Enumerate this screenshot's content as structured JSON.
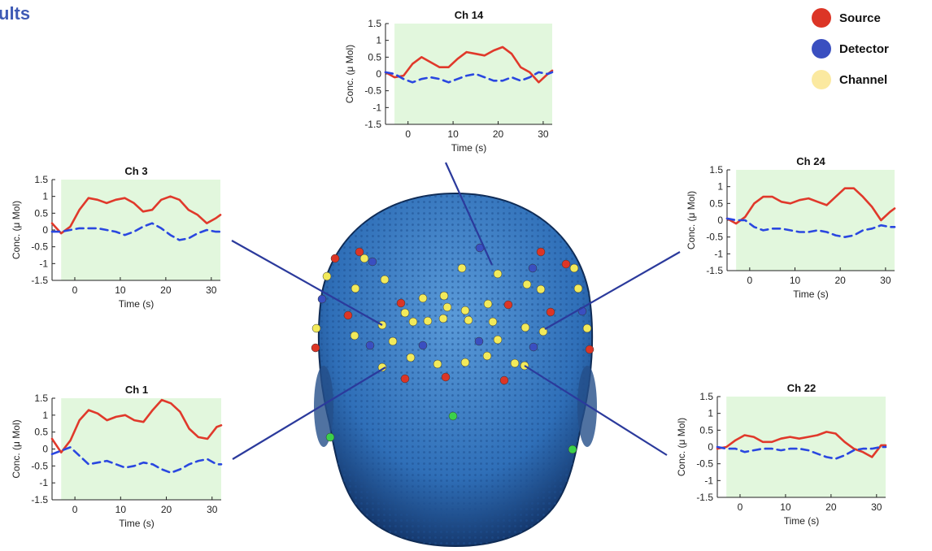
{
  "page_title_fragment": "ults",
  "colors": {
    "title": "#3f5bb5",
    "plot_bg": "#e2f7dd",
    "source_line": "#e0392b",
    "detector_line": "#2a47e0",
    "connector": "#2b3a9c",
    "head": "#3f7fc4",
    "head_dark": "#1b3f7a"
  },
  "legend": {
    "items": [
      {
        "label": "Source",
        "color": "#dc3526"
      },
      {
        "label": "Detector",
        "color": "#3a4fc0"
      },
      {
        "label": "Channel",
        "color": "#fbe9a0"
      }
    ]
  },
  "chart_data": [
    {
      "type": "line",
      "title": "Ch 14",
      "xlabel": "Time (s)",
      "ylabel": "Conc. (μ Mol)",
      "xlim": [
        -5,
        32
      ],
      "ylim": [
        -1.5,
        1.5
      ],
      "xticks": [
        "0",
        "10",
        "20",
        "30"
      ],
      "yticks": [
        "1.5",
        "1",
        "0.5",
        "0",
        "-0.5",
        "-1",
        "-1.5"
      ],
      "shaded_region": [
        -3,
        32
      ],
      "series": [
        {
          "style": "solid-red",
          "x": [
            -5,
            -3,
            -1,
            1,
            3,
            5,
            7,
            9,
            11,
            13,
            15,
            17,
            19,
            21,
            23,
            25,
            27,
            29,
            31,
            32
          ],
          "y": [
            0.05,
            -0.1,
            -0.05,
            0.3,
            0.5,
            0.35,
            0.2,
            0.2,
            0.45,
            0.65,
            0.6,
            0.55,
            0.7,
            0.8,
            0.6,
            0.2,
            0.05,
            -0.25,
            0.0,
            0.1
          ]
        },
        {
          "style": "dashed-blue",
          "x": [
            -5,
            -3,
            -1,
            1,
            3,
            5,
            7,
            9,
            11,
            13,
            15,
            17,
            19,
            21,
            23,
            25,
            27,
            29,
            31,
            32
          ],
          "y": [
            0.05,
            0.0,
            -0.15,
            -0.25,
            -0.15,
            -0.1,
            -0.15,
            -0.25,
            -0.15,
            -0.05,
            0.0,
            -0.1,
            -0.2,
            -0.2,
            -0.1,
            -0.2,
            -0.1,
            0.05,
            0.0,
            0.05
          ]
        }
      ]
    },
    {
      "type": "line",
      "title": "Ch 3",
      "xlabel": "Time (s)",
      "ylabel": "Conc. (μ Mol)",
      "xlim": [
        -5,
        32
      ],
      "ylim": [
        -1.5,
        1.5
      ],
      "xticks": [
        "0",
        "10",
        "20",
        "30"
      ],
      "yticks": [
        "1.5",
        "1",
        "0.5",
        "0",
        "-0.5",
        "-1",
        "-1.5"
      ],
      "shaded_region": [
        -3,
        32
      ],
      "series": [
        {
          "style": "solid-red",
          "x": [
            -5,
            -3,
            -1,
            1,
            3,
            5,
            7,
            9,
            11,
            13,
            15,
            17,
            19,
            21,
            23,
            25,
            27,
            29,
            31,
            32
          ],
          "y": [
            0.2,
            -0.1,
            0.1,
            0.6,
            0.95,
            0.9,
            0.8,
            0.9,
            0.95,
            0.8,
            0.55,
            0.6,
            0.9,
            1.0,
            0.9,
            0.6,
            0.45,
            0.2,
            0.35,
            0.45
          ]
        },
        {
          "style": "dashed-blue",
          "x": [
            -5,
            -3,
            -1,
            1,
            3,
            5,
            7,
            9,
            11,
            13,
            15,
            17,
            19,
            21,
            23,
            25,
            27,
            29,
            31,
            32
          ],
          "y": [
            -0.05,
            -0.05,
            0.0,
            0.05,
            0.05,
            0.05,
            0.0,
            -0.05,
            -0.15,
            -0.05,
            0.1,
            0.2,
            0.05,
            -0.15,
            -0.3,
            -0.25,
            -0.1,
            0.0,
            -0.05,
            -0.05
          ]
        }
      ]
    },
    {
      "type": "line",
      "title": "Ch 24",
      "xlabel": "Time (s)",
      "ylabel": "Conc. (μ Mol)",
      "xlim": [
        -5,
        32
      ],
      "ylim": [
        -1.5,
        1.5
      ],
      "xticks": [
        "0",
        "10",
        "20",
        "30"
      ],
      "yticks": [
        "1.5",
        "1",
        "0.5",
        "0",
        "-0.5",
        "-1",
        "-1.5"
      ],
      "shaded_region": [
        -3,
        32
      ],
      "series": [
        {
          "style": "solid-red",
          "x": [
            -5,
            -3,
            -1,
            1,
            3,
            5,
            7,
            9,
            11,
            13,
            15,
            17,
            19,
            21,
            23,
            25,
            27,
            29,
            31,
            32
          ],
          "y": [
            0.05,
            -0.1,
            0.1,
            0.5,
            0.7,
            0.7,
            0.55,
            0.5,
            0.6,
            0.65,
            0.55,
            0.45,
            0.7,
            0.95,
            0.95,
            0.7,
            0.4,
            0.0,
            0.25,
            0.35
          ]
        },
        {
          "style": "dashed-blue",
          "x": [
            -5,
            -3,
            -1,
            1,
            3,
            5,
            7,
            9,
            11,
            13,
            15,
            17,
            19,
            21,
            23,
            25,
            27,
            29,
            31,
            32
          ],
          "y": [
            0.05,
            0.0,
            0.0,
            -0.2,
            -0.3,
            -0.25,
            -0.25,
            -0.3,
            -0.35,
            -0.35,
            -0.3,
            -0.35,
            -0.45,
            -0.5,
            -0.45,
            -0.3,
            -0.25,
            -0.15,
            -0.2,
            -0.2
          ]
        }
      ]
    },
    {
      "type": "line",
      "title": "Ch 1",
      "xlabel": "Time (s)",
      "ylabel": "Conc. (μ Mol)",
      "xlim": [
        -5,
        32
      ],
      "ylim": [
        -1.5,
        1.5
      ],
      "xticks": [
        "0",
        "10",
        "20",
        "30"
      ],
      "yticks": [
        "1.5",
        "1",
        "0.5",
        "0",
        "-0.5",
        "-1",
        "-1.5"
      ],
      "shaded_region": [
        -3,
        32
      ],
      "series": [
        {
          "style": "solid-red",
          "x": [
            -5,
            -3,
            -1,
            1,
            3,
            5,
            7,
            9,
            11,
            13,
            15,
            17,
            19,
            21,
            23,
            25,
            27,
            29,
            31,
            32
          ],
          "y": [
            0.3,
            -0.1,
            0.25,
            0.85,
            1.15,
            1.05,
            0.85,
            0.95,
            1.0,
            0.85,
            0.8,
            1.15,
            1.45,
            1.35,
            1.1,
            0.6,
            0.35,
            0.3,
            0.65,
            0.7
          ]
        },
        {
          "style": "dashed-blue",
          "x": [
            -5,
            -3,
            -1,
            1,
            3,
            5,
            7,
            9,
            11,
            13,
            15,
            17,
            19,
            21,
            23,
            25,
            27,
            29,
            31,
            32
          ],
          "y": [
            -0.15,
            -0.05,
            0.05,
            -0.2,
            -0.45,
            -0.4,
            -0.35,
            -0.45,
            -0.55,
            -0.5,
            -0.4,
            -0.45,
            -0.6,
            -0.7,
            -0.6,
            -0.45,
            -0.35,
            -0.3,
            -0.45,
            -0.45
          ]
        }
      ]
    },
    {
      "type": "line",
      "title": "Ch 22",
      "xlabel": "Time (s)",
      "ylabel": "Conc. (μ Mol)",
      "xlim": [
        -5,
        32
      ],
      "ylim": [
        -1.5,
        1.5
      ],
      "xticks": [
        "0",
        "10",
        "20",
        "30"
      ],
      "yticks": [
        "1.5",
        "1",
        "0.5",
        "0",
        "-0.5",
        "-1",
        "-1.5"
      ],
      "shaded_region": [
        -3,
        32
      ],
      "series": [
        {
          "style": "solid-red",
          "x": [
            -5,
            -3,
            -1,
            1,
            3,
            5,
            7,
            9,
            11,
            13,
            15,
            17,
            19,
            21,
            23,
            25,
            27,
            29,
            31,
            32
          ],
          "y": [
            -0.05,
            0.0,
            0.2,
            0.35,
            0.3,
            0.15,
            0.15,
            0.25,
            0.3,
            0.25,
            0.3,
            0.35,
            0.45,
            0.4,
            0.15,
            -0.05,
            -0.15,
            -0.3,
            0.05,
            0.05
          ]
        },
        {
          "style": "dashed-blue",
          "x": [
            -5,
            -3,
            -1,
            1,
            3,
            5,
            7,
            9,
            11,
            13,
            15,
            17,
            19,
            21,
            23,
            25,
            27,
            29,
            31,
            32
          ],
          "y": [
            0.0,
            -0.05,
            -0.05,
            -0.15,
            -0.1,
            -0.05,
            -0.05,
            -0.1,
            -0.05,
            -0.05,
            -0.1,
            -0.2,
            -0.3,
            -0.35,
            -0.25,
            -0.1,
            -0.05,
            -0.05,
            0.0,
            0.0
          ]
        }
      ]
    }
  ]
}
